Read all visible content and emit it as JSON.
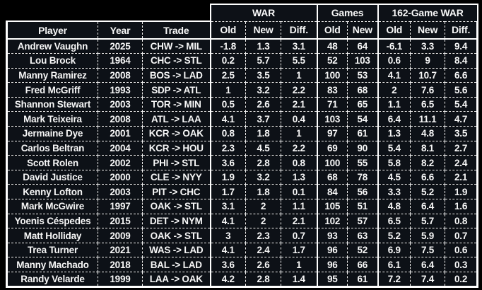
{
  "colors": {
    "page_bg": "#000000",
    "cell_bg": "#0d1117",
    "text": "#f7f7f7",
    "border": "#ffffff"
  },
  "table": {
    "column_groups": [
      {
        "label": "WAR",
        "span": 3
      },
      {
        "label": "Games",
        "span": 2
      },
      {
        "label": "162-Game WAR",
        "span": 3
      }
    ],
    "columns": [
      "Player",
      "Year",
      "Trade",
      "Old",
      "New",
      "Diff.",
      "Old",
      "New",
      "Old",
      "New",
      "Diff."
    ],
    "column_keys": [
      "player",
      "year",
      "trade",
      "war-old",
      "war-new",
      "war-diff",
      "games-old",
      "games-new",
      "162war-old",
      "162war-new",
      "162war-diff"
    ],
    "rows": [
      [
        "Andrew Vaughn",
        "2025",
        "CHW -> MIL",
        "-1.8",
        "1.3",
        "3.1",
        "48",
        "64",
        "-6.1",
        "3.3",
        "9.4"
      ],
      [
        "Lou Brock",
        "1964",
        "CHC -> STL",
        "0.2",
        "5.7",
        "5.5",
        "52",
        "103",
        "0.6",
        "9",
        "8.4"
      ],
      [
        "Manny Ramirez",
        "2008",
        "BOS -> LAD",
        "2.5",
        "3.5",
        "1",
        "100",
        "53",
        "4.1",
        "10.7",
        "6.6"
      ],
      [
        "Fred McGriff",
        "1993",
        "SDP -> ATL",
        "1",
        "3.2",
        "2.2",
        "83",
        "68",
        "2",
        "7.6",
        "5.6"
      ],
      [
        "Shannon Stewart",
        "2003",
        "TOR -> MIN",
        "0.5",
        "2.6",
        "2.1",
        "71",
        "65",
        "1.1",
        "6.5",
        "5.4"
      ],
      [
        "Mark Teixeira",
        "2008",
        "ATL -> LAA",
        "4.1",
        "3.7",
        "0.4",
        "103",
        "54",
        "6.4",
        "11.1",
        "4.7"
      ],
      [
        "Jermaine Dye",
        "2001",
        "KCR -> OAK",
        "0.8",
        "1.8",
        "1",
        "97",
        "61",
        "1.3",
        "4.8",
        "3.5"
      ],
      [
        "Carlos Beltran",
        "2004",
        "KCR -> HOU",
        "2.3",
        "4.5",
        "2.2",
        "69",
        "90",
        "5.4",
        "8.1",
        "2.7"
      ],
      [
        "Scott Rolen",
        "2002",
        "PHI -> STL",
        "3.6",
        "2.8",
        "0.8",
        "100",
        "55",
        "5.8",
        "8.2",
        "2.4"
      ],
      [
        "David Justice",
        "2000",
        "CLE -> NYY",
        "1.9",
        "3.2",
        "1.3",
        "68",
        "78",
        "4.5",
        "6.6",
        "2.1"
      ],
      [
        "Kenny Lofton",
        "2003",
        "PIT -> CHC",
        "1.7",
        "1.8",
        "0.1",
        "84",
        "56",
        "3.3",
        "5.2",
        "1.9"
      ],
      [
        "Mark McGwire",
        "1997",
        "OAK -> STL",
        "3.1",
        "2",
        "1.1",
        "105",
        "51",
        "4.8",
        "6.4",
        "1.6"
      ],
      [
        "Yoenis Céspedes",
        "2015",
        "DET -> NYM",
        "4.1",
        "2",
        "2.1",
        "102",
        "57",
        "6.5",
        "5.7",
        "0.8"
      ],
      [
        "Matt Holliday",
        "2009",
        "OAK -> STL",
        "3",
        "2.3",
        "0.7",
        "93",
        "63",
        "5.2",
        "5.9",
        "0.7"
      ],
      [
        "Trea Turner",
        "2021",
        "WAS -> LAD",
        "4.1",
        "2.4",
        "1.7",
        "96",
        "52",
        "6.9",
        "7.5",
        "0.6"
      ],
      [
        "Manny Machado",
        "2018",
        "BAL -> LAD",
        "3.6",
        "2.6",
        "1",
        "96",
        "66",
        "6.1",
        "6.4",
        "0.3"
      ],
      [
        "Randy Velarde",
        "1999",
        "LAA -> OAK",
        "4.2",
        "2.8",
        "1.4",
        "95",
        "61",
        "7.2",
        "7.4",
        "0.2"
      ]
    ]
  }
}
